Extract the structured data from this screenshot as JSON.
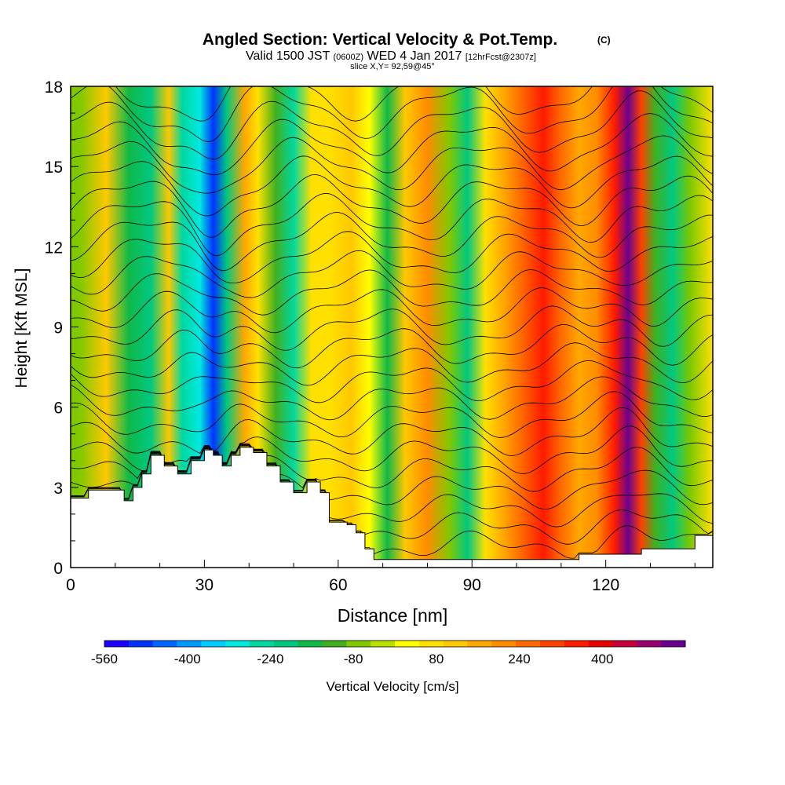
{
  "chart_data": {
    "type": "heatmap",
    "title": "Angled Section: Vertical Velocity & Pot.Temp.",
    "title_mark": "(C)",
    "subtitle_parts": [
      "Valid 1500 JST",
      "(0600Z)",
      "WED 4 Jan 2017",
      "[12hrFcst@2307z]"
    ],
    "slice_label": "slice X,Y= 92,59@45°",
    "xlabel": "Distance [nm]",
    "ylabel": "Height [Kft MSL]",
    "xlim": [
      0,
      144
    ],
    "ylim": [
      0,
      18
    ],
    "x_ticks": [
      0,
      30,
      60,
      90,
      120
    ],
    "y_ticks": [
      0,
      3,
      6,
      9,
      12,
      15,
      18
    ],
    "x_tick_labels": [
      "0",
      "30",
      "60",
      "90",
      "120"
    ],
    "y_tick_labels": [
      "0",
      "3",
      "6",
      "9",
      "12",
      "15",
      "18"
    ],
    "colorbar": {
      "label": "Vertical Velocity [cm/s]",
      "range": [
        -560,
        560
      ],
      "tick_values": [
        -560,
        -400,
        -240,
        -80,
        80,
        240,
        400
      ],
      "tick_labels": [
        "-560",
        "-400",
        "-240",
        "-80",
        "80",
        "240",
        "400"
      ],
      "colors": [
        "#1a00ff",
        "#0033ff",
        "#0066ff",
        "#0099ff",
        "#00ccff",
        "#00e8e0",
        "#00d8a0",
        "#00c880",
        "#10b848",
        "#40b020",
        "#80c800",
        "#b8e000",
        "#ffff00",
        "#ffe000",
        "#ffc800",
        "#ffa800",
        "#ff8c00",
        "#ff6a00",
        "#ff4000",
        "#ff1a00",
        "#e60000",
        "#c8003a",
        "#960070",
        "#6a0090"
      ]
    },
    "velocity_columns": [
      {
        "x": 2,
        "w": -60
      },
      {
        "x": 8,
        "w": 100
      },
      {
        "x": 13,
        "w": -150
      },
      {
        "x": 18,
        "w": -220
      },
      {
        "x": 22,
        "w": 110
      },
      {
        "x": 25,
        "w": -250
      },
      {
        "x": 29,
        "w": -300
      },
      {
        "x": 32,
        "w": -470
      },
      {
        "x": 35,
        "w": -200
      },
      {
        "x": 39,
        "w": 150
      },
      {
        "x": 42,
        "w": 60
      },
      {
        "x": 46,
        "w": -100
      },
      {
        "x": 50,
        "w": -250
      },
      {
        "x": 54,
        "w": 50
      },
      {
        "x": 58,
        "w": 60
      },
      {
        "x": 63,
        "w": 120
      },
      {
        "x": 67,
        "w": 40
      },
      {
        "x": 71,
        "w": -180
      },
      {
        "x": 75,
        "w": 100
      },
      {
        "x": 80,
        "w": 200
      },
      {
        "x": 85,
        "w": -60
      },
      {
        "x": 89,
        "w": -200
      },
      {
        "x": 93,
        "w": 60
      },
      {
        "x": 97,
        "w": 180
      },
      {
        "x": 101,
        "w": 260
      },
      {
        "x": 106,
        "w": 330
      },
      {
        "x": 110,
        "w": 240
      },
      {
        "x": 114,
        "w": 140
      },
      {
        "x": 118,
        "w": 220
      },
      {
        "x": 122,
        "w": 360
      },
      {
        "x": 125,
        "w": 530
      },
      {
        "x": 128,
        "w": 300
      },
      {
        "x": 131,
        "w": -140
      },
      {
        "x": 135,
        "w": -220
      },
      {
        "x": 139,
        "w": -60
      },
      {
        "x": 144,
        "w": 50
      }
    ],
    "terrain_height_kft": [
      {
        "x": 0,
        "h": 2.6
      },
      {
        "x": 4,
        "h": 2.9
      },
      {
        "x": 8,
        "h": 2.9
      },
      {
        "x": 12,
        "h": 2.5
      },
      {
        "x": 14,
        "h": 3.0
      },
      {
        "x": 16,
        "h": 3.5
      },
      {
        "x": 18,
        "h": 4.2
      },
      {
        "x": 21,
        "h": 3.8
      },
      {
        "x": 24,
        "h": 3.5
      },
      {
        "x": 27,
        "h": 4.0
      },
      {
        "x": 30,
        "h": 4.4
      },
      {
        "x": 32,
        "h": 4.2
      },
      {
        "x": 34,
        "h": 3.8
      },
      {
        "x": 36,
        "h": 4.2
      },
      {
        "x": 38,
        "h": 4.5
      },
      {
        "x": 41,
        "h": 4.3
      },
      {
        "x": 44,
        "h": 3.8
      },
      {
        "x": 47,
        "h": 3.2
      },
      {
        "x": 50,
        "h": 2.8
      },
      {
        "x": 53,
        "h": 3.2
      },
      {
        "x": 56,
        "h": 2.8
      },
      {
        "x": 58,
        "h": 1.7
      },
      {
        "x": 62,
        "h": 1.6
      },
      {
        "x": 64,
        "h": 1.3
      },
      {
        "x": 66,
        "h": 0.7
      },
      {
        "x": 68,
        "h": 0.3
      },
      {
        "x": 80,
        "h": 0.3
      },
      {
        "x": 100,
        "h": 0.3
      },
      {
        "x": 113,
        "h": 0.3
      },
      {
        "x": 114,
        "h": 0.5
      },
      {
        "x": 128,
        "h": 0.7
      },
      {
        "x": 140,
        "h": 1.2
      },
      {
        "x": 144,
        "h": 1.3
      }
    ],
    "grid": false,
    "legend": "bottom"
  }
}
